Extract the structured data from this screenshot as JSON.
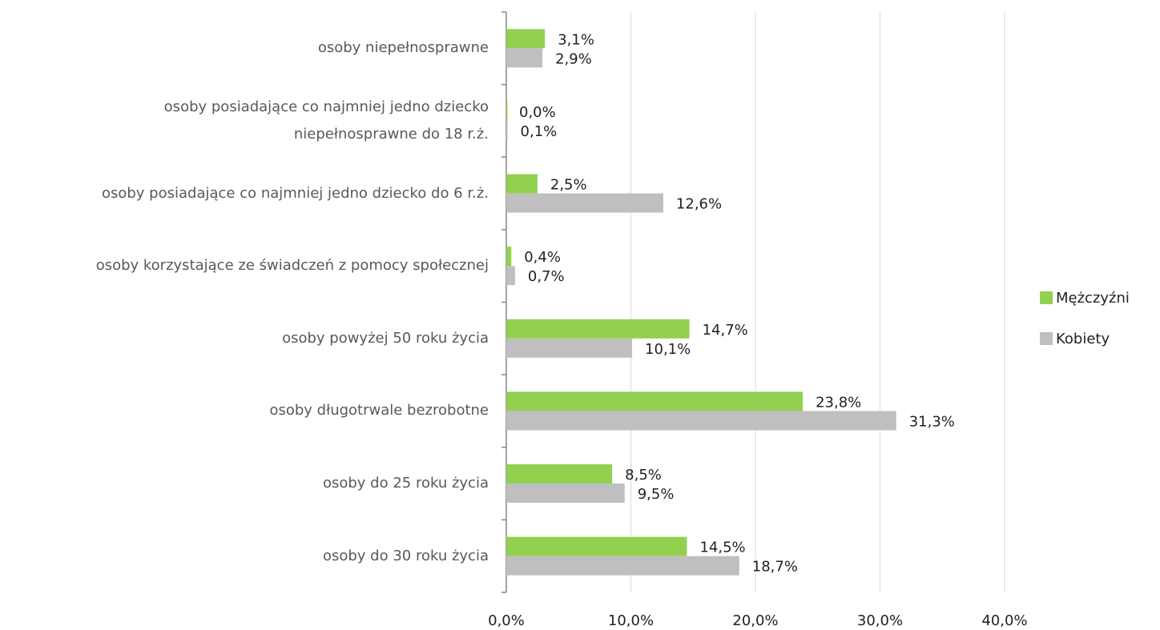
{
  "chart_data": {
    "type": "hbar",
    "categories": [
      "osoby niepełnosprawne",
      "osoby posiadające co najmniej jedno dziecko\nniepełnosprawne do 18 r.ż.",
      "osoby posiadające co najmniej jedno dziecko do 6 r.ż.",
      "osoby korzystające ze świadczeń z pomocy społecznej",
      "osoby powyżej 50 roku życia",
      "osoby długotrwale bezrobotne",
      "osoby do 25 roku życia",
      "osoby do 30 roku życia"
    ],
    "series": [
      {
        "name": "Mężczyźni",
        "color": "#92d050",
        "values": [
          3.1,
          0.0,
          2.5,
          0.4,
          14.7,
          23.8,
          8.5,
          14.5
        ],
        "value_labels": [
          "3,1%",
          "0,0%",
          "2,5%",
          "0,4%",
          "14,7%",
          "23,8%",
          "8,5%",
          "14,5%"
        ]
      },
      {
        "name": "Kobiety",
        "color": "#bfbfbf",
        "values": [
          2.9,
          0.1,
          12.6,
          0.7,
          10.1,
          31.3,
          9.5,
          18.7
        ],
        "value_labels": [
          "2,9%",
          "0,1%",
          "12,6%",
          "0,7%",
          "10,1%",
          "31,3%",
          "9,5%",
          "18,7%"
        ]
      }
    ],
    "xlim": [
      0,
      40
    ],
    "xticks": [
      {
        "value": 0,
        "label": "0,0%"
      },
      {
        "value": 10,
        "label": "10,0%"
      },
      {
        "value": 20,
        "label": "20,0%"
      },
      {
        "value": 30,
        "label": "30,0%"
      },
      {
        "value": 40,
        "label": "40,0%"
      }
    ],
    "grid": true,
    "legend": "right"
  }
}
